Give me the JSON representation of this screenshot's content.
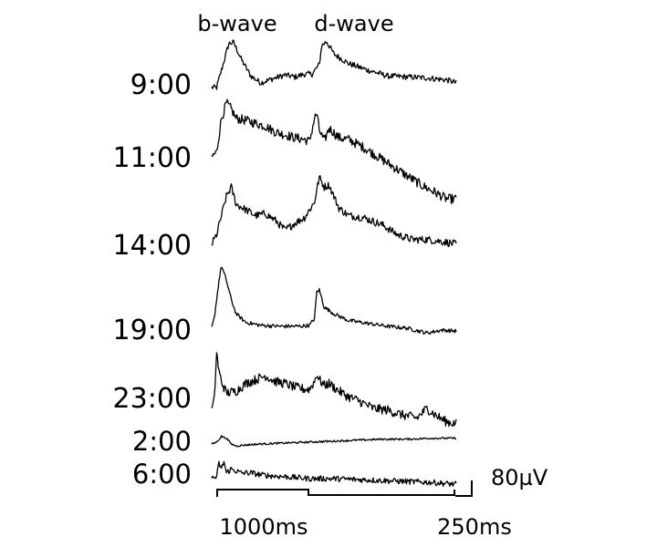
{
  "chart_data": {
    "type": "line",
    "title": "",
    "header_labels": [
      "b-wave",
      "d-wave"
    ],
    "traces": [
      {
        "label": "9:00",
        "key": [
          [
            0,
            0
          ],
          [
            2,
            0
          ],
          [
            4,
            18
          ],
          [
            7,
            46
          ],
          [
            9,
            47
          ],
          [
            12,
            30
          ],
          [
            16,
            12
          ],
          [
            20,
            5
          ],
          [
            26,
            10
          ],
          [
            30,
            13
          ],
          [
            34,
            11
          ],
          [
            38,
            14
          ],
          [
            41,
            14
          ],
          [
            44,
            24
          ],
          [
            45,
            44
          ],
          [
            47,
            48
          ],
          [
            50,
            35
          ],
          [
            56,
            25
          ],
          [
            64,
            18
          ],
          [
            72,
            12
          ],
          [
            80,
            11
          ],
          [
            88,
            10
          ],
          [
            96,
            8
          ],
          [
            100,
            5
          ]
        ],
        "noise": 3
      },
      {
        "label": "11:00",
        "key": [
          [
            0,
            0
          ],
          [
            2,
            5
          ],
          [
            4,
            40
          ],
          [
            6,
            56
          ],
          [
            8,
            50
          ],
          [
            10,
            40
          ],
          [
            14,
            38
          ],
          [
            18,
            35
          ],
          [
            22,
            32
          ],
          [
            26,
            26
          ],
          [
            30,
            23
          ],
          [
            34,
            20
          ],
          [
            38,
            18
          ],
          [
            40,
            16
          ],
          [
            42,
            40
          ],
          [
            43,
            45
          ],
          [
            44,
            28
          ],
          [
            46,
            16
          ],
          [
            48,
            30
          ],
          [
            52,
            20
          ],
          [
            56,
            18
          ],
          [
            62,
            10
          ],
          [
            68,
            0
          ],
          [
            74,
            -10
          ],
          [
            80,
            -20
          ],
          [
            86,
            -30
          ],
          [
            92,
            -38
          ],
          [
            96,
            -44
          ],
          [
            100,
            -44
          ]
        ],
        "noise": 5
      },
      {
        "label": "14:00",
        "key": [
          [
            0,
            0
          ],
          [
            2,
            10
          ],
          [
            4,
            30
          ],
          [
            6,
            50
          ],
          [
            8,
            60
          ],
          [
            10,
            42
          ],
          [
            14,
            36
          ],
          [
            18,
            30
          ],
          [
            22,
            32
          ],
          [
            26,
            25
          ],
          [
            30,
            15
          ],
          [
            34,
            22
          ],
          [
            38,
            28
          ],
          [
            42,
            44
          ],
          [
            44,
            70
          ],
          [
            46,
            60
          ],
          [
            48,
            62
          ],
          [
            52,
            38
          ],
          [
            56,
            30
          ],
          [
            62,
            28
          ],
          [
            70,
            20
          ],
          [
            76,
            10
          ],
          [
            82,
            5
          ],
          [
            88,
            5
          ],
          [
            94,
            3
          ],
          [
            100,
            0
          ]
        ],
        "noise": 4
      },
      {
        "label": "19:00",
        "key": [
          [
            0,
            0
          ],
          [
            1,
            10
          ],
          [
            3,
            50
          ],
          [
            4,
            65
          ],
          [
            6,
            50
          ],
          [
            8,
            30
          ],
          [
            10,
            15
          ],
          [
            14,
            6
          ],
          [
            20,
            3
          ],
          [
            28,
            2
          ],
          [
            36,
            2
          ],
          [
            40,
            3
          ],
          [
            42,
            10
          ],
          [
            43,
            38
          ],
          [
            44,
            40
          ],
          [
            46,
            22
          ],
          [
            50,
            15
          ],
          [
            56,
            8
          ],
          [
            64,
            5
          ],
          [
            72,
            2
          ],
          [
            80,
            0
          ],
          [
            88,
            -5
          ],
          [
            94,
            -2
          ],
          [
            100,
            -3
          ]
        ],
        "noise": 2
      },
      {
        "label": "23:00",
        "key": [
          [
            0,
            0
          ],
          [
            1,
            10
          ],
          [
            2,
            60
          ],
          [
            3,
            40
          ],
          [
            4,
            30
          ],
          [
            6,
            18
          ],
          [
            10,
            20
          ],
          [
            14,
            28
          ],
          [
            18,
            32
          ],
          [
            22,
            36
          ],
          [
            26,
            30
          ],
          [
            30,
            28
          ],
          [
            34,
            24
          ],
          [
            38,
            22
          ],
          [
            40,
            22
          ],
          [
            42,
            30
          ],
          [
            43,
            38
          ],
          [
            44,
            32
          ],
          [
            46,
            26
          ],
          [
            48,
            28
          ],
          [
            52,
            20
          ],
          [
            56,
            14
          ],
          [
            60,
            10
          ],
          [
            66,
            2
          ],
          [
            72,
            0
          ],
          [
            78,
            -5
          ],
          [
            84,
            -8
          ],
          [
            88,
            2
          ],
          [
            92,
            -6
          ],
          [
            96,
            -12
          ],
          [
            100,
            -14
          ]
        ],
        "noise": 5
      },
      {
        "label": "2:00",
        "key": [
          [
            0,
            0
          ],
          [
            2,
            2
          ],
          [
            4,
            8
          ],
          [
            6,
            6
          ],
          [
            8,
            0
          ],
          [
            10,
            -2
          ],
          [
            14,
            -1
          ],
          [
            20,
            0
          ],
          [
            30,
            1
          ],
          [
            40,
            2
          ],
          [
            50,
            3
          ],
          [
            60,
            4
          ],
          [
            70,
            5
          ],
          [
            80,
            5
          ],
          [
            90,
            6
          ],
          [
            96,
            6
          ],
          [
            100,
            6
          ]
        ],
        "noise": 1
      },
      {
        "label": "6:00",
        "key": [
          [
            0,
            0
          ],
          [
            2,
            2
          ],
          [
            3,
            16
          ],
          [
            4,
            10
          ],
          [
            5,
            18
          ],
          [
            6,
            6
          ],
          [
            8,
            10
          ],
          [
            12,
            6
          ],
          [
            16,
            6
          ],
          [
            20,
            4
          ],
          [
            24,
            3
          ],
          [
            30,
            2
          ],
          [
            40,
            0
          ],
          [
            50,
            0
          ],
          [
            60,
            -1
          ],
          [
            70,
            -2
          ],
          [
            80,
            -3
          ],
          [
            90,
            -4
          ],
          [
            100,
            -6
          ]
        ],
        "noise": 3
      }
    ],
    "scale_bar_label": "80µV",
    "time_labels": [
      "1000ms",
      "250ms"
    ]
  }
}
